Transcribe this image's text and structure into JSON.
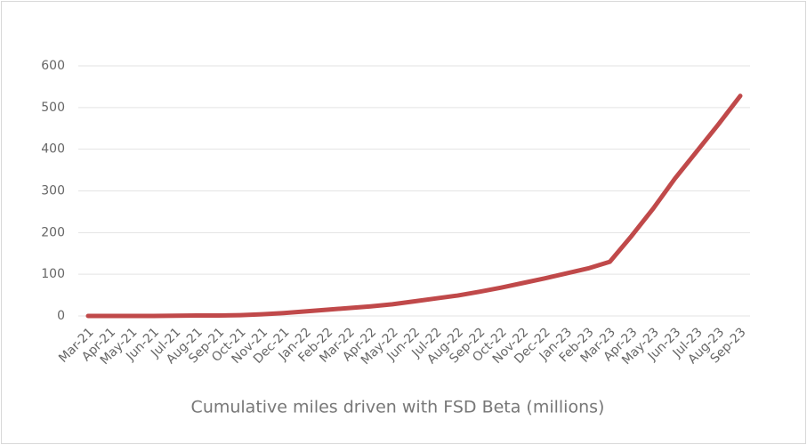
{
  "chart_data": {
    "type": "line",
    "title": "Cumulative miles driven with FSD Beta (millions)",
    "categories": [
      "Mar-21",
      "Apr-21",
      "May-21",
      "Jun-21",
      "Jul-21",
      "Aug-21",
      "Sep-21",
      "Oct-21",
      "Nov-21",
      "Dec-21",
      "Jan-22",
      "Feb-22",
      "Mar-22",
      "Apr-22",
      "May-22",
      "Jun-22",
      "Jul-22",
      "Aug-22",
      "Sep-22",
      "Oct-22",
      "Nov-22",
      "Dec-22",
      "Jan-23",
      "Feb-23",
      "Mar-23",
      "Apr-23",
      "May-23",
      "Jun-23",
      "Jul-23",
      "Aug-23",
      "Sep-23"
    ],
    "series": [
      {
        "name": "Cumulative miles",
        "color": "#c0494a",
        "values": [
          0,
          0,
          0,
          0,
          0.5,
          1,
          1,
          2,
          4,
          7,
          11,
          15,
          19,
          23,
          28,
          35,
          42,
          49,
          58,
          68,
          79,
          90,
          102,
          114,
          130,
          192,
          258,
          330,
          395,
          460,
          528
        ]
      }
    ],
    "ylim": [
      0,
      600
    ],
    "yticks": [
      0,
      100,
      200,
      300,
      400,
      500,
      600
    ],
    "grid": true
  }
}
